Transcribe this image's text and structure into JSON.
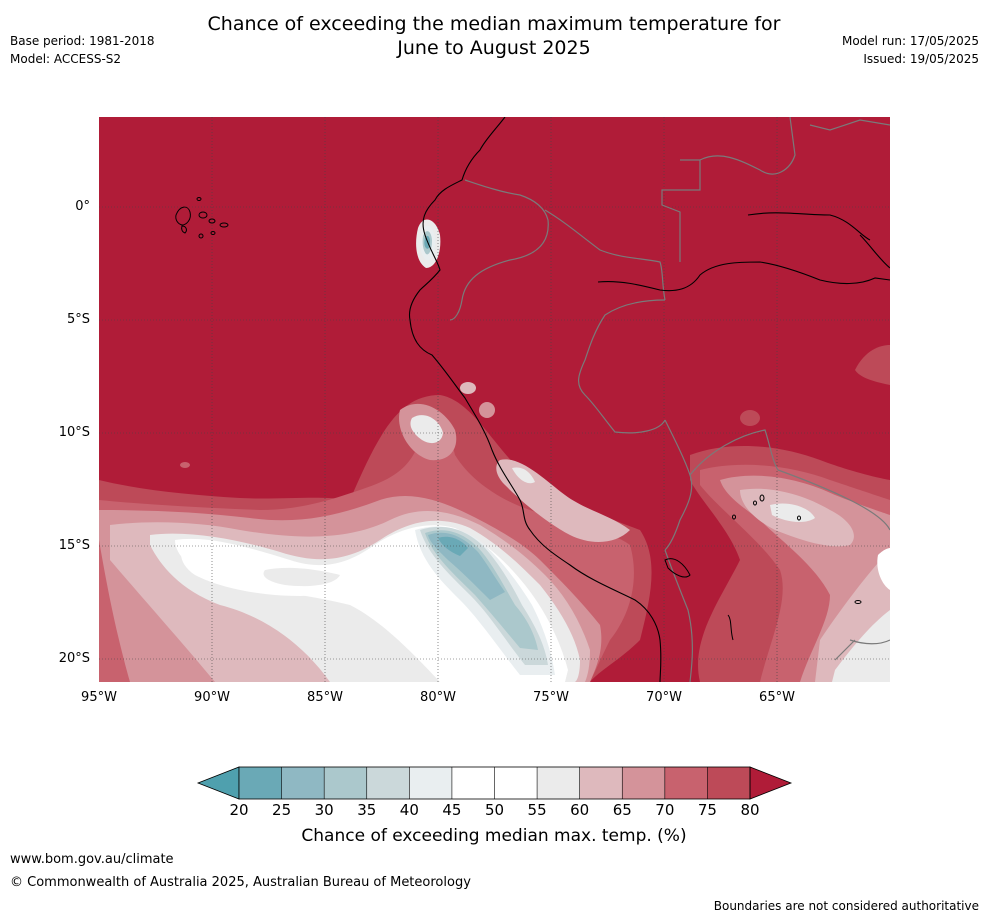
{
  "header": {
    "title_line1": "Chance of exceeding the median maximum temperature for",
    "title_line2": "June to August 2025",
    "base_period": "Base period: 1981-2018",
    "model": "Model: ACCESS-S2",
    "model_run": "Model run: 17/05/2025",
    "issued": "Issued: 19/05/2025"
  },
  "map": {
    "lat_labels": [
      "0°",
      "5°S",
      "10°S",
      "15°S",
      "20°S"
    ],
    "lon_labels": [
      "95°W",
      "90°W",
      "85°W",
      "80°W",
      "75°W",
      "70°W",
      "65°W"
    ],
    "colors": {
      "above_80": "#b01c38",
      "c75": "#bd4a58",
      "c70": "#c8626e",
      "c65": "#d4939a",
      "c60": "#deb9bd",
      "c55": "#ebebeb",
      "c50": "#ffffff",
      "c45": "#e9eef0",
      "c40": "#cbd8da",
      "c35": "#abc8cc",
      "c30": "#8fb8c3",
      "c25": "#6aa9b6",
      "border_color": "#7a7a7a",
      "coast_color": "#000000"
    }
  },
  "colorbar": {
    "title": "Chance of exceeding median max. temp. (%)",
    "tick_labels": [
      "20",
      "25",
      "30",
      "35",
      "40",
      "45",
      "50",
      "55",
      "60",
      "65",
      "70",
      "75",
      "80"
    ],
    "bin_colors": [
      "#6aa9b6",
      "#8fb8c3",
      "#abc8cc",
      "#cbd8da",
      "#e9eef0",
      "#ffffff",
      "#ffffff",
      "#ebebeb",
      "#deb9bd",
      "#d4939a",
      "#c8626e",
      "#bd4a58"
    ],
    "under_color": "#4fa0ae",
    "over_color": "#b01c38"
  },
  "footer": {
    "website": "www.bom.gov.au/climate",
    "copyright": "© Commonwealth of Australia 2025, Australian Bureau of Meteorology",
    "disclaimer": "Boundaries are not considered authoritative"
  }
}
